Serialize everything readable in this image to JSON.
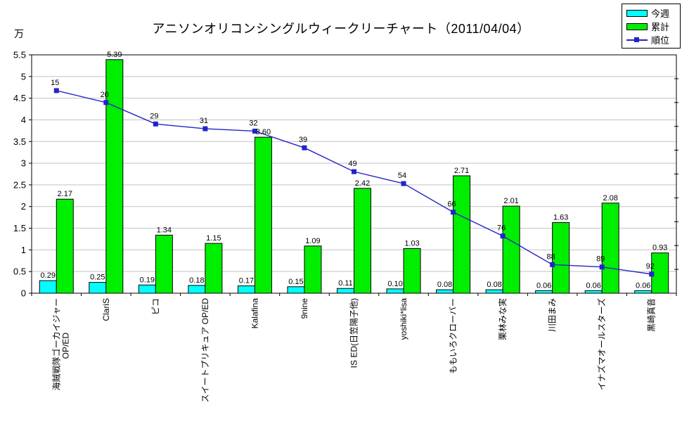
{
  "chart_data": {
    "type": "bar",
    "title": "アニソンオリコンシングルウィークリーチャート（2011/04/04）",
    "unit_label": "万",
    "categories": [
      "海賊戦隊ゴーカイジャー\nOP/ED",
      "ClariS",
      "ピコ",
      "スイートプリキュア OP/ED",
      "Kalafina",
      "9nine",
      "IS ED(日笠陽子他)",
      "yoshiki*lisa",
      "ももいろクローバー",
      "栗林みな実",
      "川田まみ",
      "イナズマオールスターズ",
      "黒崎真音"
    ],
    "series": [
      {
        "name": "今週",
        "type": "bar",
        "color": "#00FFFF",
        "values": [
          "0.29",
          "0.25",
          "0.19",
          "0.18",
          "0.17",
          "0.15",
          "0.11",
          "0.10",
          "0.08",
          "0.08",
          "0.06",
          "0.06",
          "0.06"
        ]
      },
      {
        "name": "累計",
        "type": "bar",
        "color": "#00EE00",
        "values": [
          "2.17",
          "5.39",
          "1.34",
          "1.15",
          "3.60",
          "1.09",
          "2.42",
          "1.03",
          "2.71",
          "2.01",
          "1.63",
          "2.08",
          "0.93"
        ]
      },
      {
        "name": "順位",
        "type": "line",
        "color": "#2424C8",
        "values": [
          "15",
          "20",
          "29",
          "31",
          "32",
          "39",
          "49",
          "54",
          "66",
          "76",
          "88",
          "89",
          "92"
        ]
      }
    ],
    "y_axis": {
      "min": 0,
      "max": 5.5,
      "step": 0.5,
      "ticks": [
        "0",
        "0.5",
        "1",
        "1.5",
        "2",
        "2.5",
        "3",
        "3.5",
        "4",
        "4.5",
        "5",
        "5.5"
      ]
    },
    "rank_axis": {
      "min": 0,
      "max": 100,
      "step": 10,
      "inverted": true
    },
    "grid": true,
    "grid_color": "#C3C3C3",
    "legend_position": "top-right"
  }
}
